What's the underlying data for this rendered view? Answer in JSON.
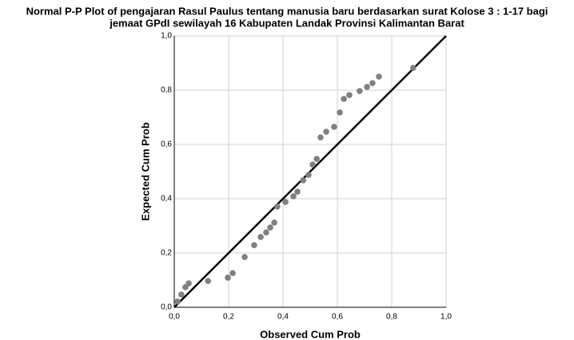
{
  "chart_data": {
    "type": "scatter",
    "title": [
      "Normal P-P Plot of pengajaran Rasul Paulus tentang manusia baru berdasarkan surat Kolose 3 : 1-17 bagi",
      "jemaat GPdI sewilayah 16 Kabupaten Landak Provinsi Kalimantan Barat"
    ],
    "x_label": "Observed Cum Prob",
    "y_label": "Expected Cum Prob",
    "x": [
      0.012,
      0.026,
      0.041,
      0.053,
      0.124,
      0.197,
      0.215,
      0.259,
      0.294,
      0.318,
      0.338,
      0.353,
      0.368,
      0.379,
      0.409,
      0.438,
      0.453,
      0.474,
      0.494,
      0.509,
      0.524,
      0.538,
      0.559,
      0.588,
      0.609,
      0.624,
      0.644,
      0.682,
      0.709,
      0.729,
      0.753,
      0.879
    ],
    "values": [
      0.021,
      0.047,
      0.074,
      0.088,
      0.097,
      0.109,
      0.126,
      0.185,
      0.229,
      0.259,
      0.276,
      0.294,
      0.312,
      0.371,
      0.388,
      0.409,
      0.426,
      0.468,
      0.488,
      0.526,
      0.547,
      0.626,
      0.647,
      0.665,
      0.718,
      0.768,
      0.782,
      0.797,
      0.812,
      0.826,
      0.85,
      0.882
    ],
    "color": "#808080",
    "xlim": [
      0,
      1
    ],
    "ylim": [
      0,
      1
    ],
    "xticks": [
      {
        "value": 0,
        "label": "0,0"
      },
      {
        "value": 0.2,
        "label": "0,2"
      },
      {
        "value": 0.4,
        "label": "0,4"
      },
      {
        "value": 0.6,
        "label": "0,6"
      },
      {
        "value": 0.8,
        "label": "0,8"
      },
      {
        "value": 1,
        "label": "1,0"
      }
    ],
    "yticks": [
      {
        "value": 0,
        "label": "0,0"
      },
      {
        "value": 0.2,
        "label": "0,2"
      },
      {
        "value": 0.4,
        "label": "0,4"
      },
      {
        "value": 0.6,
        "label": "0,6"
      },
      {
        "value": 0.8,
        "label": "0,8"
      },
      {
        "value": 1,
        "label": "1,0"
      }
    ],
    "grid": true
  }
}
